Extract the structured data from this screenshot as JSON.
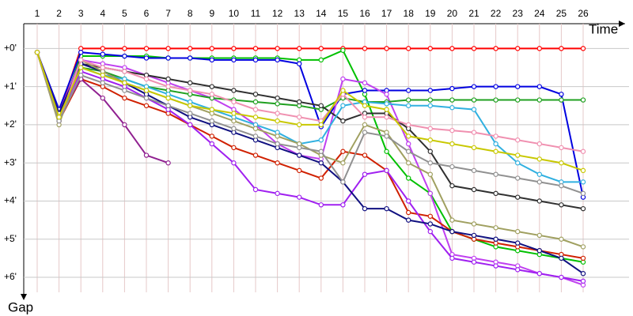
{
  "chart_data": {
    "type": "line",
    "x_label": "Time",
    "y_label": "Gap",
    "categories": [
      "1",
      "2",
      "3",
      "4",
      "5",
      "6",
      "7",
      "8",
      "9",
      "10",
      "11",
      "12",
      "13",
      "14",
      "15",
      "16",
      "17",
      "18",
      "19",
      "20",
      "21",
      "22",
      "23",
      "24",
      "25",
      "26"
    ],
    "ylim": [
      -0.65,
      6.6
    ],
    "yticks": [
      {
        "value": 0,
        "label": "+0'"
      },
      {
        "value": 1,
        "label": "+1'"
      },
      {
        "value": 2,
        "label": "+2'"
      },
      {
        "value": 3,
        "label": "+3'"
      },
      {
        "value": 4,
        "label": "+4'"
      },
      {
        "value": 5,
        "label": "+5'"
      },
      {
        "value": 6,
        "label": "+6'"
      }
    ],
    "grid": true,
    "series": [
      {
        "color": "#ff0000",
        "values": [
          0.1,
          1.7,
          0,
          0,
          0,
          0,
          0,
          0,
          0,
          0,
          0,
          0,
          0,
          0,
          0,
          0,
          0,
          0,
          0,
          0,
          0,
          0,
          0,
          0,
          0,
          0
        ]
      },
      {
        "color": "#00c000",
        "values": [
          0.1,
          1.8,
          0.2,
          0.2,
          0.2,
          0.2,
          0.25,
          0.25,
          0.25,
          0.25,
          0.25,
          0.25,
          0.3,
          0.3,
          0.05,
          1.2,
          2.7,
          3.4,
          3.8,
          4.8,
          5.0,
          5.2,
          5.3,
          5.4,
          5.5,
          5.6
        ]
      },
      {
        "color": "#0000e0",
        "values": [
          0.1,
          1.6,
          0.1,
          0.15,
          0.2,
          0.25,
          0.25,
          0.25,
          0.3,
          0.3,
          0.3,
          0.3,
          0.4,
          2.05,
          1.2,
          1.1,
          1.1,
          1.1,
          1.1,
          1.05,
          1.0,
          1.0,
          1.0,
          1.0,
          1.2,
          3.9
        ]
      },
      {
        "color": "#c040f0",
        "values": [
          0.1,
          1.7,
          0.3,
          0.4,
          0.5,
          0.7,
          0.9,
          1.1,
          1.3,
          1.6,
          2.0,
          2.5,
          2.8,
          2.9,
          0.8,
          0.9,
          1.2,
          2.5,
          3.8,
          5.4,
          5.5,
          5.6,
          5.7,
          5.9,
          6.0,
          6.2
        ]
      },
      {
        "color": "#20a020",
        "values": [
          0.1,
          1.9,
          0.5,
          0.6,
          0.8,
          1.0,
          1.1,
          1.2,
          1.3,
          1.35,
          1.4,
          1.45,
          1.5,
          1.6,
          1.3,
          1.4,
          1.4,
          1.35,
          1.35,
          1.35,
          1.35,
          1.35,
          1.35,
          1.35,
          1.35,
          1.35
        ]
      },
      {
        "color": "#303030",
        "values": [
          0.1,
          1.8,
          0.4,
          0.5,
          0.6,
          0.7,
          0.8,
          0.9,
          1.0,
          1.1,
          1.2,
          1.3,
          1.4,
          1.5,
          1.9,
          1.7,
          1.7,
          2.1,
          2.7,
          3.6,
          3.7,
          3.8,
          3.9,
          4.0,
          4.1,
          4.2
        ]
      },
      {
        "color": "#d02000",
        "values": [
          0.1,
          1.9,
          0.8,
          1.0,
          1.3,
          1.5,
          1.7,
          2.0,
          2.3,
          2.6,
          2.8,
          3.0,
          3.2,
          3.4,
          2.7,
          2.8,
          3.2,
          4.3,
          4.4,
          4.8,
          5.0,
          5.1,
          5.2,
          5.3,
          5.4,
          5.5
        ]
      },
      {
        "color": "#902090",
        "values": [
          0.1,
          1.8,
          0.8,
          1.3,
          2.0,
          2.8,
          3.0,
          null,
          null,
          null,
          null,
          null,
          null,
          null,
          null,
          null,
          null,
          null,
          null,
          null,
          null,
          null,
          null,
          null,
          null,
          null
        ]
      },
      {
        "color": "#30b0e0",
        "values": [
          0.1,
          1.9,
          0.5,
          0.7,
          0.8,
          1.0,
          1.2,
          1.4,
          1.6,
          1.8,
          2.0,
          2.2,
          2.5,
          2.4,
          1.5,
          1.4,
          1.45,
          1.5,
          1.5,
          1.55,
          1.6,
          2.5,
          3.0,
          3.3,
          3.5,
          3.5
        ]
      },
      {
        "color": "#a020f0",
        "values": [
          0.1,
          1.8,
          0.6,
          0.8,
          1.0,
          1.3,
          1.6,
          2.0,
          2.5,
          3.0,
          3.7,
          3.8,
          3.9,
          4.1,
          4.1,
          3.3,
          3.2,
          4.0,
          4.8,
          5.5,
          5.6,
          5.7,
          5.8,
          5.9,
          6.0,
          6.1
        ]
      },
      {
        "color": "#101080",
        "values": [
          0.1,
          1.7,
          0.4,
          0.6,
          0.9,
          1.2,
          1.5,
          1.8,
          2.0,
          2.2,
          2.4,
          2.6,
          2.8,
          3.0,
          3.5,
          4.2,
          4.2,
          4.5,
          4.6,
          4.8,
          4.9,
          5.0,
          5.1,
          5.3,
          5.5,
          5.9
        ]
      },
      {
        "color": "#a0a060",
        "values": [
          0.1,
          2.0,
          0.3,
          0.6,
          0.9,
          1.1,
          1.3,
          1.5,
          1.7,
          1.9,
          2.1,
          2.3,
          2.5,
          2.8,
          3.0,
          2.0,
          2.2,
          3.0,
          3.3,
          4.5,
          4.6,
          4.7,
          4.8,
          4.9,
          5.0,
          5.2
        ]
      },
      {
        "color": "#f090b0",
        "values": [
          0.1,
          1.9,
          0.3,
          0.5,
          0.6,
          0.8,
          1.0,
          1.1,
          1.2,
          1.4,
          1.6,
          1.7,
          1.8,
          1.9,
          1.2,
          1.8,
          1.8,
          2.0,
          2.1,
          2.15,
          2.2,
          2.3,
          2.4,
          2.5,
          2.6,
          2.7
        ]
      },
      {
        "color": "#909090",
        "values": [
          0.1,
          1.9,
          0.7,
          0.9,
          1.1,
          1.3,
          1.5,
          1.7,
          1.9,
          2.1,
          2.3,
          2.5,
          2.6,
          2.7,
          3.5,
          2.2,
          2.3,
          2.7,
          3.0,
          3.1,
          3.2,
          3.3,
          3.4,
          3.5,
          3.6,
          3.8
        ]
      },
      {
        "color": "#c8c800",
        "values": [
          0.1,
          1.8,
          0.5,
          0.7,
          0.9,
          1.1,
          1.3,
          1.5,
          1.6,
          1.7,
          1.8,
          1.9,
          2.0,
          2.0,
          1.1,
          1.5,
          1.6,
          2.3,
          2.4,
          2.5,
          2.6,
          2.7,
          2.8,
          2.9,
          3.0,
          3.2
        ]
      }
    ]
  }
}
